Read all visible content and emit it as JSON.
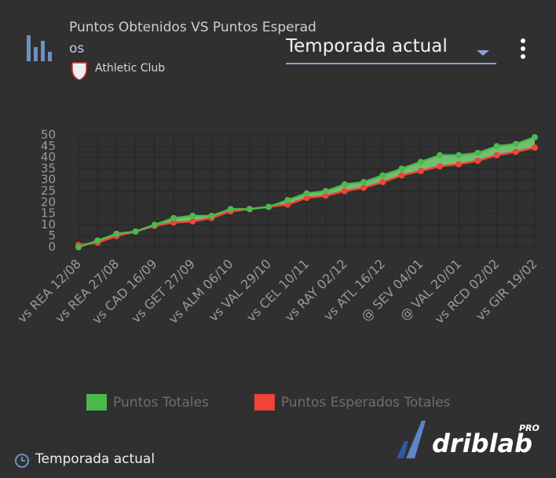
{
  "header": {
    "title": "Puntos Obtenidos VS Puntos Esperados",
    "team": "Athletic Club",
    "dropdown": "Temporada actual"
  },
  "chart_data": {
    "type": "line",
    "categories": [
      "vs REA 12/08",
      null,
      "vs REA 27/08",
      null,
      "vs CAD 16/09",
      null,
      "vs GET 27/09",
      null,
      "vs ALM 06/10",
      null,
      "vs VAL 29/10",
      null,
      "vs CEL 10/11",
      null,
      "vs RAY 02/12",
      null,
      "vs ATL 16/12",
      null,
      "@ SEV 04/01",
      null,
      "@ VAL 20/01",
      null,
      "vs RCD 02/02",
      null,
      "vs GIR 19/02"
    ],
    "series": [
      {
        "name": "Puntos Totales",
        "color": "#4cb84c",
        "values": [
          0,
          3,
          6,
          7,
          10,
          13,
          14,
          14,
          17,
          17,
          18,
          21,
          24,
          25,
          28,
          29,
          32,
          35,
          38,
          41,
          41,
          42,
          45,
          46,
          49
        ]
      },
      {
        "name": "Puntos Esperados Totales",
        "color": "#f04438",
        "values": [
          1,
          2,
          5,
          7,
          9.5,
          11,
          11.5,
          13,
          16,
          17,
          18,
          19,
          22,
          23,
          25,
          26.5,
          29,
          32,
          34,
          36,
          37,
          38.5,
          41,
          42.5,
          44.4
        ]
      }
    ],
    "ylim": [
      0,
      50
    ],
    "yticks": [
      0,
      5,
      10,
      15,
      20,
      25,
      30,
      35,
      40,
      45,
      50
    ],
    "grid": true,
    "legend": "bottom"
  },
  "footer": {
    "season": "Temporada actual",
    "brand": "driblab",
    "badge": "PRO"
  }
}
